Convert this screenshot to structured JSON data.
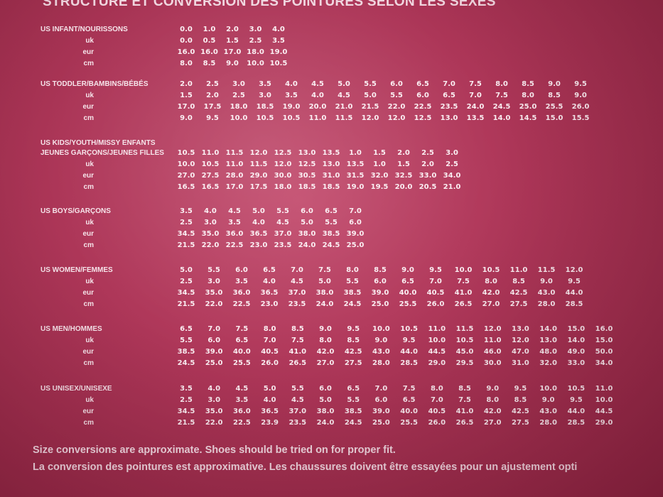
{
  "title": "STRUCTURE ET CONVERSION DES POINTURES SELON LES SEXES",
  "sections": [
    {
      "name": "US INFANT/NOURISSONS",
      "labels": [
        "US INFANT/NOURISSONS",
        "uk",
        "eur",
        "cm"
      ],
      "rows": [
        [
          "0.0",
          "1.0",
          "2.0",
          "3.0",
          "4.0"
        ],
        [
          "0.0",
          "0.5",
          "1.5",
          "2.5",
          "3.5"
        ],
        [
          "16.0",
          "16.0",
          "17.0",
          "18.0",
          "19.0"
        ],
        [
          "8.0",
          "8.5",
          "9.0",
          "10.0",
          "10.5"
        ]
      ]
    },
    {
      "name": "US TODDLER/BAMBINS/BÉBÉS",
      "labels": [
        "US TODDLER/BAMBINS/BÉBÉS",
        "uk",
        "eur",
        "cm"
      ],
      "rows": [
        [
          "2.0",
          "2.5",
          "3.0",
          "3.5",
          "4.0",
          "4.5",
          "5.0",
          "5.5",
          "6.0",
          "6.5",
          "7.0",
          "7.5",
          "8.0",
          "8.5",
          "9.0",
          "9.5"
        ],
        [
          "1.5",
          "2.0",
          "2.5",
          "3.0",
          "3.5",
          "4.0",
          "4.5",
          "5.0",
          "5.5",
          "6.0",
          "6.5",
          "7.0",
          "7.5",
          "8.0",
          "8.5",
          "9.0"
        ],
        [
          "17.0",
          "17.5",
          "18.0",
          "18.5",
          "19.0",
          "20.0",
          "21.0",
          "21.5",
          "22.0",
          "22.5",
          "23.5",
          "24.0",
          "24.5",
          "25.0",
          "25.5",
          "26.0"
        ],
        [
          "9.0",
          "9.5",
          "10.0",
          "10.5",
          "10.5",
          "11.0",
          "11.5",
          "12.0",
          "12.0",
          "12.5",
          "13.0",
          "13.5",
          "14.0",
          "14.5",
          "15.0",
          "15.5"
        ]
      ]
    },
    {
      "name": "US KIDS/YOUTH/MISSY ENFANTS",
      "name2": "JEUNES GARÇONS/JEUNES FILLES",
      "labels": [
        "JEUNES GARÇONS/JEUNES FILLES",
        "uk",
        "eur",
        "cm"
      ],
      "rows": [
        [
          "10.5",
          "11.0",
          "11.5",
          "12.0",
          "12.5",
          "13.0",
          "13.5",
          "1.0",
          "1.5",
          "2.0",
          "2.5",
          "3.0"
        ],
        [
          "10.0",
          "10.5",
          "11.0",
          "11.5",
          "12.0",
          "12.5",
          "13.0",
          "13.5",
          "1.0",
          "1.5",
          "2.0",
          "2.5"
        ],
        [
          "27.0",
          "27.5",
          "28.0",
          "29.0",
          "30.0",
          "30.5",
          "31.0",
          "31.5",
          "32.0",
          "32.5",
          "33.0",
          "34.0"
        ],
        [
          "16.5",
          "16.5",
          "17.0",
          "17.5",
          "18.0",
          "18.5",
          "18.5",
          "19.0",
          "19.5",
          "20.0",
          "20.5",
          "21.0"
        ]
      ]
    },
    {
      "name": "US BOYS/GARÇONS",
      "labels": [
        "US BOYS/GARÇONS",
        "uk",
        "eur",
        "cm"
      ],
      "rows": [
        [
          "3.5",
          "4.0",
          "4.5",
          "5.0",
          "5.5",
          "6.0",
          "6.5",
          "7.0"
        ],
        [
          "2.5",
          "3.0",
          "3.5",
          "4.0",
          "4.5",
          "5.0",
          "5.5",
          "6.0"
        ],
        [
          "34.5",
          "35.0",
          "36.0",
          "36.5",
          "37.0",
          "38.0",
          "38.5",
          "39.0"
        ],
        [
          "21.5",
          "22.0",
          "22.5",
          "23.0",
          "23.5",
          "24.0",
          "24.5",
          "25.0"
        ]
      ]
    },
    {
      "name": "US WOMEN/FEMMES",
      "labels": [
        "US WOMEN/FEMMES",
        "uk",
        "eur",
        "cm"
      ],
      "rows": [
        [
          "5.0",
          "5.5",
          "6.0",
          "6.5",
          "7.0",
          "7.5",
          "8.0",
          "8.5",
          "9.0",
          "9.5",
          "10.0",
          "10.5",
          "11.0",
          "11.5",
          "12.0"
        ],
        [
          "2.5",
          "3.0",
          "3.5",
          "4.0",
          "4.5",
          "5.0",
          "5.5",
          "6.0",
          "6.5",
          "7.0",
          "7.5",
          "8.0",
          "8.5",
          "9.0",
          "9.5"
        ],
        [
          "34.5",
          "35.0",
          "36.0",
          "36.5",
          "37.0",
          "38.0",
          "38.5",
          "39.0",
          "40.0",
          "40.5",
          "41.0",
          "42.0",
          "42.5",
          "43.0",
          "44.0"
        ],
        [
          "21.5",
          "22.0",
          "22.5",
          "23.0",
          "23.5",
          "24.0",
          "24.5",
          "25.0",
          "25.5",
          "26.0",
          "26.5",
          "27.0",
          "27.5",
          "28.0",
          "28.5"
        ]
      ]
    },
    {
      "name": "US MEN/HOMMES",
      "labels": [
        "US MEN/HOMMES",
        "uk",
        "eur",
        "cm"
      ],
      "rows": [
        [
          "6.5",
          "7.0",
          "7.5",
          "8.0",
          "8.5",
          "9.0",
          "9.5",
          "10.0",
          "10.5",
          "11.0",
          "11.5",
          "12.0",
          "13.0",
          "14.0",
          "15.0",
          "16.0"
        ],
        [
          "5.5",
          "6.0",
          "6.5",
          "7.0",
          "7.5",
          "8.0",
          "8.5",
          "9.0",
          "9.5",
          "10.0",
          "10.5",
          "11.0",
          "12.0",
          "13.0",
          "14.0",
          "15.0"
        ],
        [
          "38.5",
          "39.0",
          "40.0",
          "40.5",
          "41.0",
          "42.0",
          "42.5",
          "43.0",
          "44.0",
          "44.5",
          "45.0",
          "46.0",
          "47.0",
          "48.0",
          "49.0",
          "50.0"
        ],
        [
          "24.5",
          "25.0",
          "25.5",
          "26.0",
          "26.5",
          "27.0",
          "27.5",
          "28.0",
          "28.5",
          "29.0",
          "29.5",
          "30.0",
          "31.0",
          "32.0",
          "33.0",
          "34.0"
        ]
      ]
    },
    {
      "name": "US UNISEX/UNISEXE",
      "labels": [
        "US UNISEX/UNISEXE",
        "uk",
        "eur",
        "cm"
      ],
      "rows": [
        [
          "3.5",
          "4.0",
          "4.5",
          "5.0",
          "5.5",
          "6.0",
          "6.5",
          "7.0",
          "7.5",
          "8.0",
          "8.5",
          "9.0",
          "9.5",
          "10.0",
          "10.5",
          "11.0"
        ],
        [
          "2.5",
          "3.0",
          "3.5",
          "4.0",
          "4.5",
          "5.0",
          "5.5",
          "6.0",
          "6.5",
          "7.0",
          "7.5",
          "8.0",
          "8.5",
          "9.0",
          "9.5",
          "10.0"
        ],
        [
          "34.5",
          "35.0",
          "36.0",
          "36.5",
          "37.0",
          "38.0",
          "38.5",
          "39.0",
          "40.0",
          "40.5",
          "41.0",
          "42.0",
          "42.5",
          "43.0",
          "44.0",
          "44.5"
        ],
        [
          "21.5",
          "22.0",
          "22.5",
          "23.9",
          "23.5",
          "24.0",
          "24.5",
          "25.0",
          "25.5",
          "26.0",
          "26.5",
          "27.0",
          "27.5",
          "28.0",
          "28.5",
          "29.0"
        ]
      ]
    }
  ],
  "notes": [
    "Size conversions are approximate. Shoes should be tried on for proper fit.",
    "La conversion des pointures est approximative. Les chaussures doivent être essayées pour un ajustement opti"
  ]
}
